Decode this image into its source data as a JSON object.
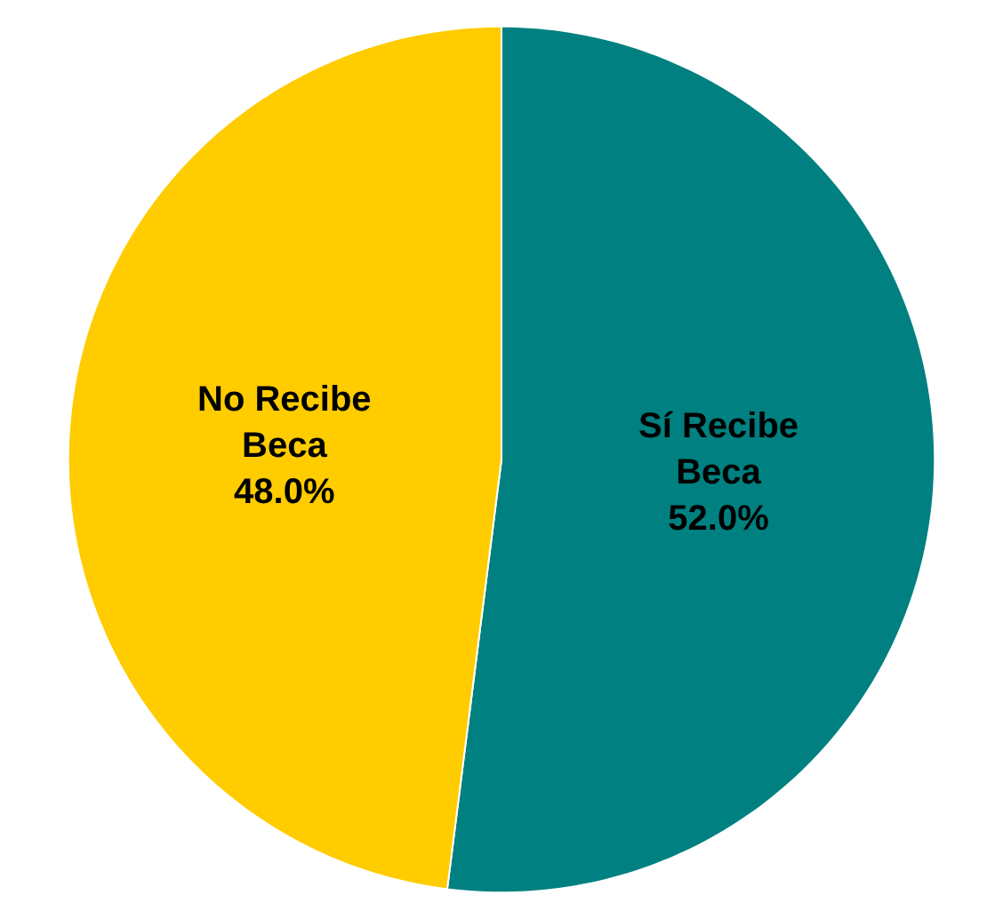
{
  "chart_data": {
    "type": "pie",
    "categories": [
      "Sí Recibe Beca",
      "No Recibe Beca"
    ],
    "values": [
      52.0,
      48.0
    ],
    "colors": [
      "#008080",
      "#ffcc00"
    ],
    "value_labels": [
      "52.0%",
      "48.0%"
    ]
  }
}
